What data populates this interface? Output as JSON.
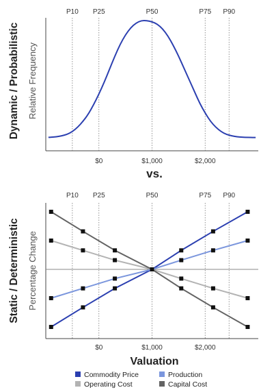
{
  "chart_data": [
    {
      "type": "line",
      "panel": "dynamic",
      "side_title": "Dynamic / Probabilistic",
      "ylabel": "Relative Frequency",
      "center_label": "vs.",
      "percentile_labels": [
        "P10",
        "P25",
        "P50",
        "P75",
        "P90"
      ],
      "percentile_values": [
        -500,
        0,
        1000,
        2000,
        2450
      ],
      "x_ticks": [
        {
          "value": 0,
          "label": "$0"
        },
        {
          "value": 1000,
          "label": "$1,000"
        },
        {
          "value": 2000,
          "label": "$2,000"
        }
      ],
      "xlim": [
        -1000,
        3000
      ],
      "grid": false,
      "series": [
        {
          "color": "#2b3fb0",
          "x": [
            -950,
            -900,
            -800,
            -700,
            -600,
            -500,
            -400,
            -300,
            -200,
            -100,
            0,
            100,
            200,
            300,
            400,
            500,
            600,
            700,
            800,
            900,
            1000,
            1100,
            1200,
            1300,
            1400,
            1500,
            1600,
            1700,
            1800,
            1900,
            2000,
            2100,
            2200,
            2300,
            2400,
            2500,
            2600,
            2700,
            2800,
            2900,
            2950
          ],
          "y": [
            0.015,
            0.016,
            0.02,
            0.028,
            0.04,
            0.063,
            0.1,
            0.15,
            0.21,
            0.29,
            0.38,
            0.48,
            0.59,
            0.7,
            0.8,
            0.88,
            0.94,
            0.98,
            1.0,
            1.0,
            0.99,
            0.97,
            0.93,
            0.87,
            0.79,
            0.7,
            0.6,
            0.5,
            0.4,
            0.3,
            0.22,
            0.15,
            0.1,
            0.063,
            0.04,
            0.028,
            0.02,
            0.016,
            0.015,
            0.014,
            0.014
          ]
        }
      ]
    },
    {
      "type": "line",
      "panel": "static",
      "side_title": "Static / Deterministic",
      "ylabel": "Percentage Change",
      "xlabel": "Valuation",
      "percentile_labels": [
        "P10",
        "P25",
        "P50",
        "P75",
        "P90"
      ],
      "percentile_values": [
        -500,
        0,
        1000,
        2000,
        2450
      ],
      "x_ticks": [
        {
          "value": 0,
          "label": "$0"
        },
        {
          "value": 1000,
          "label": "$1,000"
        },
        {
          "value": 2000,
          "label": "$2,000"
        }
      ],
      "xlim": [
        -1000,
        3000
      ],
      "ylim": [
        -1.2,
        1.2
      ],
      "grid": false,
      "legend_position": "bottom",
      "x": [
        -900,
        -300,
        300,
        1000,
        1550,
        2150,
        2800
      ],
      "series": [
        {
          "name": "Commodity Price",
          "color": "#2b3fb0",
          "values": [
            -1.0,
            -0.66,
            -0.33,
            0,
            0.33,
            0.66,
            1.0
          ]
        },
        {
          "name": "Production",
          "color": "#7b96dd",
          "values": [
            -0.5,
            -0.33,
            -0.16,
            0,
            0.16,
            0.33,
            0.5
          ]
        },
        {
          "name": "Operating Cost",
          "color": "#b3b3b3",
          "values": [
            0.5,
            0.33,
            0.16,
            0,
            -0.16,
            -0.33,
            -0.5
          ]
        },
        {
          "name": "Capital Cost",
          "color": "#636363",
          "values": [
            1.0,
            0.66,
            0.33,
            0,
            -0.33,
            -0.66,
            -1.0
          ]
        }
      ]
    }
  ]
}
